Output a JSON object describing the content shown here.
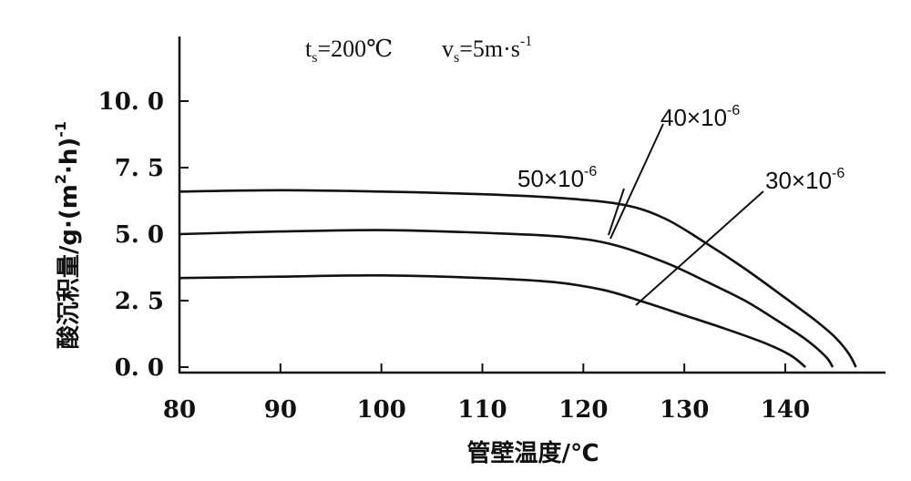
{
  "chart_data": {
    "type": "line",
    "title": "",
    "conditions": {
      "ts_var": "t",
      "ts_sub": "s",
      "ts_value": "=200℃",
      "vs_var": "v",
      "vs_sub": "s",
      "vs_value": "=5m·s",
      "vs_exp": "-1"
    },
    "xlabel": "管壁温度/℃",
    "ylabel_main": "酸沉积量/g·(m",
    "ylabel_sup1": "2",
    "ylabel_mid": "·h)",
    "ylabel_sup2": "-1",
    "xlim": [
      80,
      150
    ],
    "ylim": [
      0,
      12.5
    ],
    "x_ticks": [
      80,
      90,
      100,
      110,
      120,
      130,
      140
    ],
    "x_tick_labels": [
      "80",
      "90",
      "100",
      "110",
      "120",
      "130",
      "140"
    ],
    "y_ticks": [
      0,
      2.5,
      5.0,
      7.5,
      10.0
    ],
    "y_tick_labels": [
      "0. 0",
      "2. 5",
      "5. 0",
      "7. 5",
      "10. 0"
    ],
    "grid": false,
    "series": [
      {
        "name": "50×10⁻⁶",
        "label_base": "50×10",
        "label_exp": "-6",
        "points": [
          [
            80,
            6.6
          ],
          [
            90,
            6.65
          ],
          [
            100,
            6.6
          ],
          [
            110,
            6.5
          ],
          [
            118,
            6.35
          ],
          [
            124,
            6.1
          ],
          [
            128,
            5.6
          ],
          [
            132,
            4.7
          ],
          [
            136,
            3.7
          ],
          [
            140,
            2.6
          ],
          [
            143,
            1.75
          ],
          [
            145,
            1.1
          ],
          [
            146.3,
            0.5
          ],
          [
            147,
            0
          ]
        ]
      },
      {
        "name": "40×10⁻⁶",
        "label_base": "40×10",
        "label_exp": "-6",
        "points": [
          [
            80,
            5.0
          ],
          [
            90,
            5.1
          ],
          [
            100,
            5.15
          ],
          [
            110,
            5.05
          ],
          [
            118,
            4.9
          ],
          [
            123,
            4.6
          ],
          [
            128,
            3.95
          ],
          [
            132,
            3.25
          ],
          [
            136,
            2.5
          ],
          [
            139,
            1.8
          ],
          [
            142,
            1.05
          ],
          [
            144,
            0.4
          ],
          [
            144.7,
            0
          ]
        ]
      },
      {
        "name": "30×10⁻⁶",
        "label_base": "30×10",
        "label_exp": "-6",
        "points": [
          [
            80,
            3.35
          ],
          [
            90,
            3.4
          ],
          [
            100,
            3.45
          ],
          [
            110,
            3.35
          ],
          [
            117,
            3.2
          ],
          [
            122,
            2.9
          ],
          [
            126,
            2.45
          ],
          [
            130,
            1.95
          ],
          [
            134,
            1.45
          ],
          [
            138,
            0.9
          ],
          [
            140.5,
            0.45
          ],
          [
            142,
            0
          ]
        ]
      }
    ]
  }
}
